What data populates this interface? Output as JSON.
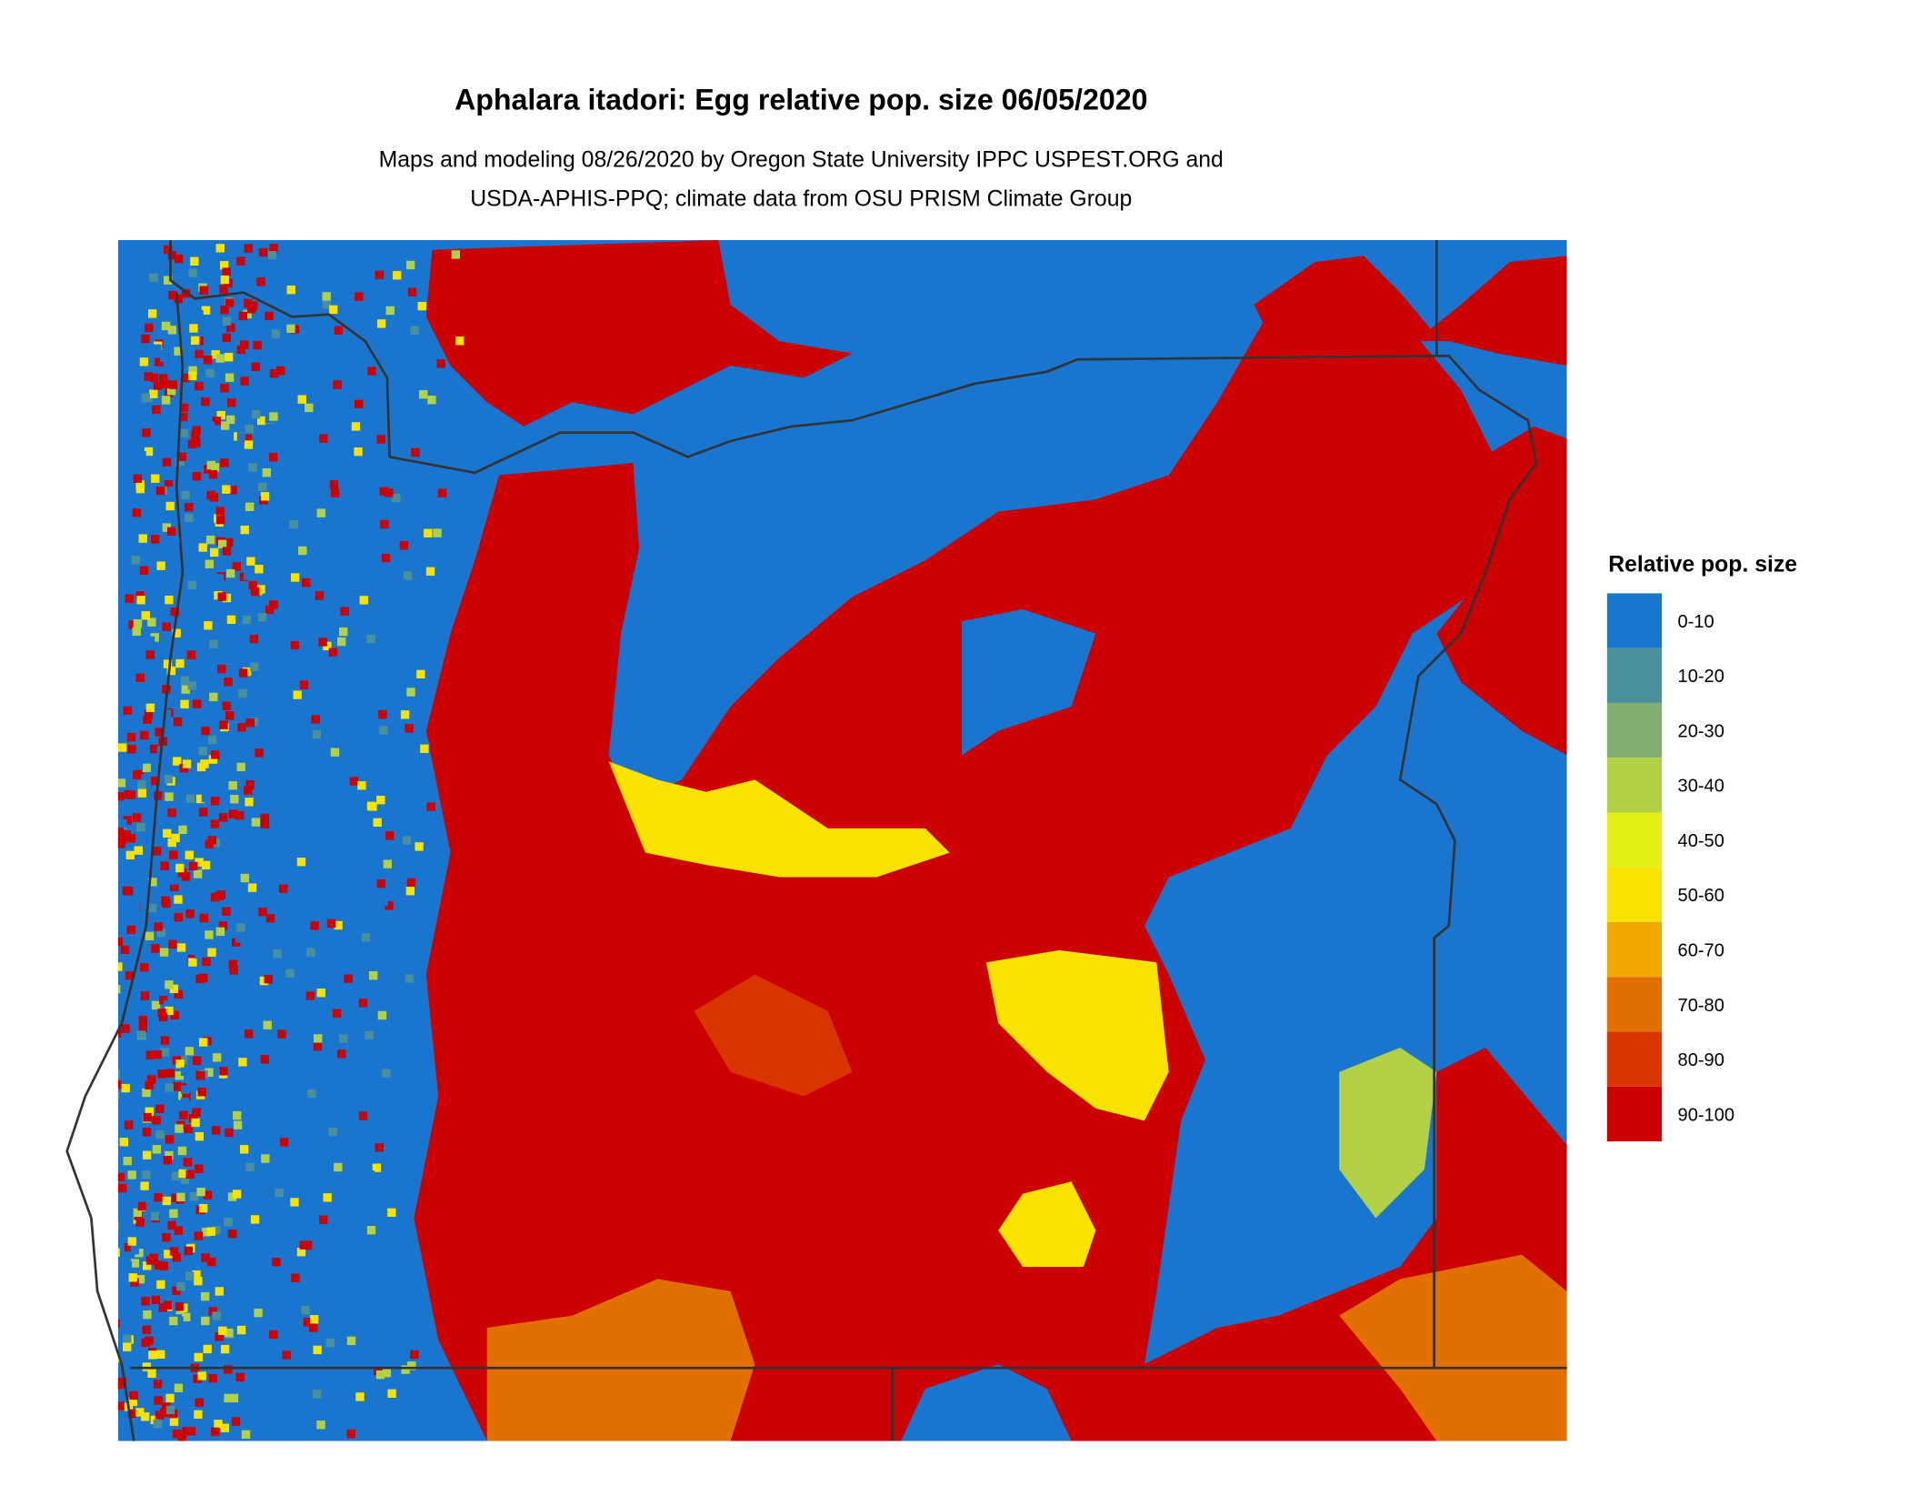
{
  "title": "Aphalara itadori: Egg relative pop. size 06/05/2020",
  "subtitle_line1": "Maps and modeling 08/26/2020 by Oregon State University IPPC USPEST.ORG and",
  "subtitle_line2": "USDA-APHIS-PPQ; climate data from OSU PRISM Climate Group",
  "legend": {
    "title": "Relative pop. size",
    "items": [
      {
        "label": "0-10",
        "color": "#1a75cf"
      },
      {
        "label": "10-20",
        "color": "#4a8f9c"
      },
      {
        "label": "20-30",
        "color": "#7eae72"
      },
      {
        "label": "30-40",
        "color": "#b3d146"
      },
      {
        "label": "40-50",
        "color": "#e4ef16"
      },
      {
        "label": "50-60",
        "color": "#f7e200"
      },
      {
        "label": "60-70",
        "color": "#efa900"
      },
      {
        "label": "70-80",
        "color": "#e27000"
      },
      {
        "label": "80-90",
        "color": "#d93500"
      },
      {
        "label": "90-100",
        "color": "#cc0000"
      }
    ]
  }
}
